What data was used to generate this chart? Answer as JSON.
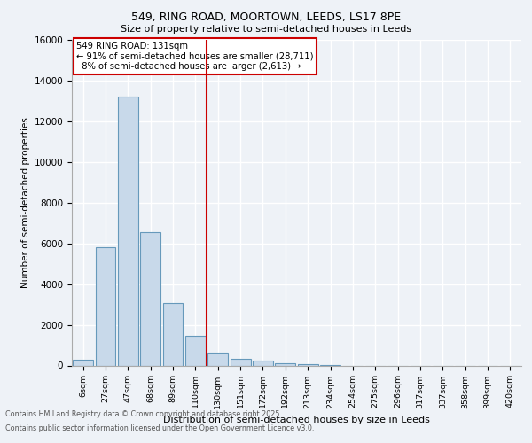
{
  "title_line1": "549, RING ROAD, MOORTOWN, LEEDS, LS17 8PE",
  "title_line2": "Size of property relative to semi-detached houses in Leeds",
  "xlabel": "Distribution of semi-detached houses by size in Leeds",
  "ylabel": "Number of semi-detached properties",
  "categories": [
    "6sqm",
    "27sqm",
    "47sqm",
    "68sqm",
    "89sqm",
    "110sqm",
    "130sqm",
    "151sqm",
    "172sqm",
    "192sqm",
    "213sqm",
    "234sqm",
    "254sqm",
    "275sqm",
    "296sqm",
    "317sqm",
    "337sqm",
    "358sqm",
    "399sqm",
    "420sqm"
  ],
  "values": [
    300,
    5800,
    13200,
    6550,
    3050,
    1480,
    620,
    310,
    250,
    130,
    80,
    30,
    0,
    0,
    0,
    0,
    0,
    0,
    0,
    0
  ],
  "bar_color": "#c8d9ea",
  "bar_edge_color": "#6699bb",
  "highlight_line_index": 6,
  "highlight_line_color": "#cc0000",
  "annotation_text_line1": "549 RING ROAD: 131sqm",
  "annotation_text_line2": "← 91% of semi-detached houses are smaller (28,711)",
  "annotation_text_line3": "  8% of semi-detached houses are larger (2,613) →",
  "annotation_box_color": "#cc0000",
  "ylim": [
    0,
    16000
  ],
  "yticks": [
    0,
    2000,
    4000,
    6000,
    8000,
    10000,
    12000,
    14000,
    16000
  ],
  "footer_line1": "Contains HM Land Registry data © Crown copyright and database right 2025.",
  "footer_line2": "Contains public sector information licensed under the Open Government Licence v3.0.",
  "bg_color": "#eef2f7",
  "grid_color": "#ffffff"
}
